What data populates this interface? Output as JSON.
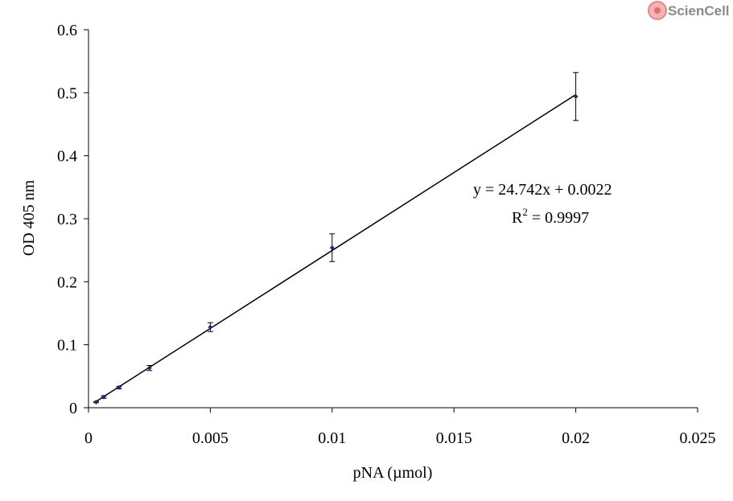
{
  "logo": {
    "text": "ScienCell"
  },
  "colors": {
    "marker": "#1f2d6b",
    "line": "#000000",
    "axis": "#000000"
  },
  "chart_data": {
    "type": "scatter",
    "xlabel": "pNA (µmol)",
    "ylabel": "OD 405 nm",
    "xlim": [
      0,
      0.025
    ],
    "ylim": [
      0,
      0.6
    ],
    "x_ticks": [
      "0",
      "0.005",
      "0.01",
      "0.015",
      "0.02",
      "0.025"
    ],
    "y_ticks": [
      "0",
      "0.1",
      "0.2",
      "0.3",
      "0.4",
      "0.5",
      "0.6"
    ],
    "grid": false,
    "series": [
      {
        "points": [
          {
            "x": 0.0003125,
            "y": 0.009,
            "err": 0.001
          },
          {
            "x": 0.000625,
            "y": 0.017,
            "err": 0.002
          },
          {
            "x": 0.00125,
            "y": 0.032,
            "err": 0.002
          },
          {
            "x": 0.0025,
            "y": 0.063,
            "err": 0.004
          },
          {
            "x": 0.005,
            "y": 0.128,
            "err": 0.007
          },
          {
            "x": 0.01,
            "y": 0.254,
            "err": 0.022
          },
          {
            "x": 0.02,
            "y": 0.494,
            "err": 0.038
          }
        ]
      }
    ],
    "trendline": {
      "slope": 24.742,
      "intercept": 0.0022
    },
    "annotations": {
      "equation": "y = 24.742x + 0.0022",
      "r2_prefix": "R",
      "r2_sup": "2",
      "r2_value": " = 0.9997"
    }
  }
}
